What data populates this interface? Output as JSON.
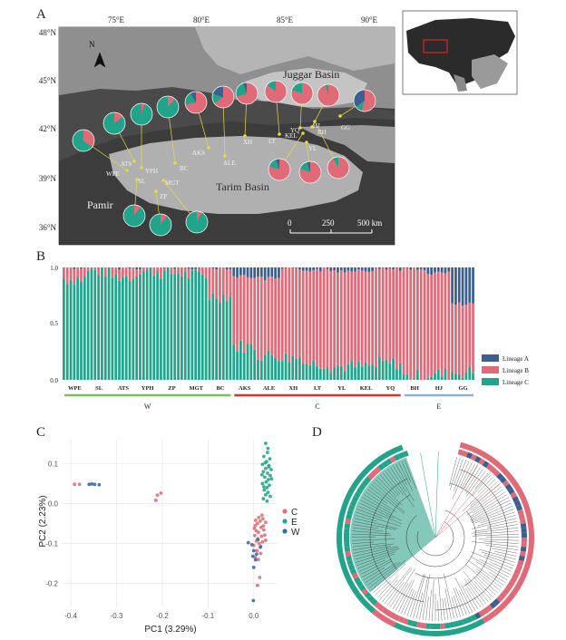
{
  "panels": {
    "a": "A",
    "b": "B",
    "c": "C",
    "d": "D"
  },
  "colors": {
    "lineage_a": "#3b5f8f",
    "lineage_b": "#e06a78",
    "lineage_c": "#22a48b",
    "group_w": "#7bbf5c",
    "group_c": "#d9362a",
    "group_e": "#8fb0dd",
    "sample_c": "#e07079",
    "sample_e": "#2aa58c",
    "sample_w": "#3d6aa3",
    "site_marker": "#e8d84a"
  },
  "map": {
    "lon_ticks": [
      "75°E",
      "80°E",
      "85°E",
      "90°E"
    ],
    "lat_ticks": [
      "48°N",
      "45°N",
      "42°N",
      "39°N",
      "36°N"
    ],
    "regions": [
      "Juggar Basin",
      "Tarim Basin",
      "Pamir"
    ],
    "scale_labels": [
      "0",
      "250",
      "500 km"
    ],
    "north": "N",
    "sites": [
      {
        "code": "WPE",
        "b": 0.35,
        "c": 0.65,
        "a": 0.0
      },
      {
        "code": "SL",
        "b": 0.1,
        "c": 0.9,
        "a": 0.0
      },
      {
        "code": "ATS",
        "b": 0.15,
        "c": 0.85,
        "a": 0.0
      },
      {
        "code": "YPH",
        "b": 0.05,
        "c": 0.95,
        "a": 0.0
      },
      {
        "code": "ZP",
        "b": 0.1,
        "c": 0.9,
        "a": 0.0
      },
      {
        "code": "MGT",
        "b": 0.08,
        "c": 0.92,
        "a": 0.0
      },
      {
        "code": "BC",
        "b": 0.12,
        "c": 0.88,
        "a": 0.0
      },
      {
        "code": "AKS",
        "b": 0.72,
        "c": 0.2,
        "a": 0.08
      },
      {
        "code": "ALE",
        "b": 0.65,
        "c": 0.15,
        "a": 0.2
      },
      {
        "code": "XH",
        "b": 0.7,
        "c": 0.25,
        "a": 0.05
      },
      {
        "code": "LT",
        "b": 0.85,
        "c": 0.15,
        "a": 0.0
      },
      {
        "code": "YL",
        "b": 0.8,
        "c": 0.15,
        "a": 0.05
      },
      {
        "code": "KEL",
        "b": 0.8,
        "c": 0.15,
        "a": 0.05
      },
      {
        "code": "YQ",
        "b": 0.8,
        "c": 0.2,
        "a": 0.0
      },
      {
        "code": "BH",
        "b": 0.95,
        "c": 0.05,
        "a": 0.0
      },
      {
        "code": "HJ",
        "b": 0.92,
        "c": 0.08,
        "a": 0.0
      },
      {
        "code": "GG",
        "b": 0.55,
        "c": 0.1,
        "a": 0.35
      }
    ]
  },
  "structure": {
    "ytick_labels": [
      "1.0",
      "0.5",
      "0.0"
    ],
    "groups": [
      {
        "label": "W",
        "sites": [
          "WPE",
          "SL",
          "ATS",
          "YPH",
          "ZP",
          "MGT",
          "BC"
        ]
      },
      {
        "label": "C",
        "sites": [
          "AKS",
          "ALE",
          "XH",
          "LT",
          "YL",
          "KEL",
          "YQ"
        ]
      },
      {
        "label": "E",
        "sites": [
          "BH",
          "HJ",
          "GG"
        ]
      }
    ],
    "legend": [
      "Lineage A",
      "Lineage B",
      "Lineage C"
    ]
  },
  "chart_data": [
    {
      "type": "bar",
      "title": "",
      "ylim": [
        0,
        1
      ],
      "categories": [
        "WPE",
        "SL",
        "ATS",
        "YPH",
        "ZP",
        "MGT",
        "BC",
        "AKS",
        "ALE",
        "XH",
        "LT",
        "YL",
        "KEL",
        "YQ",
        "BH",
        "HJ",
        "GG"
      ],
      "series": [
        {
          "name": "Lineage C",
          "values": [
            0.9,
            0.97,
            0.92,
            0.97,
            0.95,
            0.93,
            0.75,
            0.3,
            0.22,
            0.2,
            0.15,
            0.12,
            0.12,
            0.15,
            0.03,
            0.05,
            0.07
          ]
        },
        {
          "name": "Lineage B",
          "values": [
            0.1,
            0.03,
            0.08,
            0.03,
            0.05,
            0.07,
            0.25,
            0.62,
            0.68,
            0.78,
            0.83,
            0.85,
            0.86,
            0.84,
            0.95,
            0.9,
            0.6
          ]
        },
        {
          "name": "Lineage A",
          "values": [
            0.0,
            0.0,
            0.0,
            0.0,
            0.0,
            0.0,
            0.0,
            0.08,
            0.1,
            0.02,
            0.02,
            0.03,
            0.02,
            0.01,
            0.02,
            0.05,
            0.33
          ]
        }
      ]
    },
    {
      "type": "scatter",
      "xlabel": "PC1 (3.29%)",
      "ylabel": "PC2 (2.23%)",
      "xlim": [
        -0.42,
        0.05
      ],
      "ylim": [
        -0.26,
        0.16
      ],
      "xticks": [
        -0.4,
        -0.3,
        -0.2,
        -0.1,
        0.0
      ],
      "yticks": [
        0.1,
        0.0,
        -0.1,
        -0.2
      ],
      "grid": true,
      "legend_position": "right",
      "series": [
        {
          "name": "C",
          "points": [
            [
              -0.392,
              0.048
            ],
            [
              -0.381,
              0.048
            ],
            [
              -0.211,
              0.021
            ],
            [
              -0.203,
              0.026
            ],
            [
              -0.214,
              0.008
            ],
            [
              0.003,
              -0.055
            ],
            [
              0.008,
              -0.05
            ],
            [
              0.014,
              -0.044
            ],
            [
              0.02,
              -0.038
            ],
            [
              0.005,
              -0.068
            ],
            [
              0.01,
              -0.072
            ],
            [
              0.016,
              -0.06
            ],
            [
              0.022,
              -0.066
            ],
            [
              0.002,
              -0.08
            ],
            [
              0.009,
              -0.088
            ],
            [
              0.017,
              -0.082
            ],
            [
              0.024,
              -0.079
            ],
            [
              0.006,
              -0.094
            ],
            [
              0.012,
              -0.1
            ],
            [
              0.019,
              -0.096
            ],
            [
              0.0,
              -0.105
            ],
            [
              0.014,
              -0.11
            ],
            [
              0.021,
              -0.056
            ],
            [
              0.026,
              -0.047
            ],
            [
              0.004,
              -0.042
            ],
            [
              0.011,
              -0.035
            ],
            [
              0.018,
              -0.029
            ],
            [
              0.007,
              -0.118
            ],
            [
              0.015,
              -0.125
            ],
            [
              0.003,
              -0.135
            ],
            [
              0.01,
              -0.14
            ],
            [
              0.013,
              -0.185
            ],
            [
              0.008,
              -0.205
            ],
            [
              0.026,
              -0.092
            ],
            [
              0.001,
              -0.062
            ]
          ]
        },
        {
          "name": "E",
          "points": [
            [
              0.026,
              0.151
            ],
            [
              0.031,
              0.138
            ],
            [
              0.022,
              0.118
            ],
            [
              0.035,
              0.112
            ],
            [
              0.028,
              0.105
            ],
            [
              0.019,
              0.098
            ],
            [
              0.033,
              0.095
            ],
            [
              0.026,
              0.088
            ],
            [
              0.038,
              0.085
            ],
            [
              0.021,
              0.08
            ],
            [
              0.03,
              0.076
            ],
            [
              0.036,
              0.07
            ],
            [
              0.024,
              0.066
            ],
            [
              0.032,
              0.06
            ],
            [
              0.027,
              0.054
            ],
            [
              0.019,
              0.05
            ],
            [
              0.034,
              0.046
            ],
            [
              0.029,
              0.04
            ],
            [
              0.023,
              0.034
            ],
            [
              0.031,
              0.028
            ],
            [
              0.026,
              0.022
            ],
            [
              0.036,
              0.018
            ],
            [
              0.021,
              0.012
            ],
            [
              0.029,
              0.006
            ],
            [
              0.033,
              0.092
            ],
            [
              0.018,
              0.072
            ],
            [
              0.039,
              0.062
            ],
            [
              0.025,
              0.102
            ],
            [
              0.03,
              0.128
            ],
            [
              0.022,
              0.042
            ]
          ]
        },
        {
          "name": "W",
          "points": [
            [
              -0.36,
              0.048
            ],
            [
              -0.354,
              0.049
            ],
            [
              -0.348,
              0.048
            ],
            [
              -0.338,
              0.047
            ],
            [
              -0.012,
              -0.098
            ],
            [
              -0.004,
              -0.103
            ],
            [
              0.0,
              -0.118
            ],
            [
              0.006,
              -0.127
            ],
            [
              -0.002,
              -0.132
            ],
            [
              0.004,
              -0.141
            ],
            [
              0.0,
              -0.16
            ],
            [
              -0.001,
              -0.243
            ],
            [
              0.015,
              -0.108
            ],
            [
              0.009,
              -0.09
            ]
          ]
        }
      ]
    }
  ]
}
